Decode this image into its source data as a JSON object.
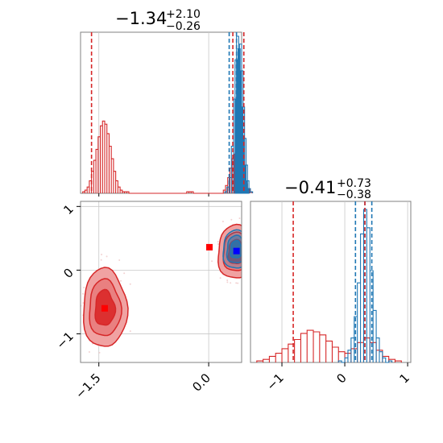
{
  "chart_data": {
    "type": "corner",
    "grid": true,
    "colors": {
      "red": "#d62728",
      "red_light": "#f0a2a2",
      "blue": "#1f77b4",
      "marker_red": "#ff0000",
      "marker_blue": "#0000ff"
    },
    "panels": [
      {
        "id": "hist-param-1",
        "type": "histogram",
        "xlim": [
          -1.75,
          0.45
        ],
        "title": {
          "value": "−1.34",
          "upper": "+2.10",
          "lower": "−0.26"
        },
        "quantiles_red": [
          -1.6,
          0.33,
          0.48
        ],
        "quantiles_blue": [
          0.28,
          0.38,
          0.48
        ],
        "series": [
          {
            "name": "",
            "color": "#d62728",
            "bins": [
              -1.72,
              -1.69,
              -1.66,
              -1.63,
              -1.6,
              -1.57,
              -1.54,
              -1.51,
              -1.48,
              -1.45,
              -1.42,
              -1.39,
              -1.36,
              -1.33,
              -1.3,
              -1.27,
              -1.24,
              -1.21,
              -1.18,
              -1.15,
              -1.12,
              -0.3,
              -0.27,
              -0.24,
              0.2,
              0.23,
              0.26,
              0.29,
              0.32,
              0.35,
              0.38,
              0.41,
              0.44,
              0.47,
              0.5,
              0.53,
              0.56
            ],
            "heights": [
              1,
              2,
              4,
              8,
              14,
              21,
              28,
              36,
              43,
              46,
              44,
              38,
              30,
              22,
              14,
              8,
              4,
              2,
              1,
              1,
              1,
              1,
              1,
              1,
              2,
              5,
              10,
              16,
              22,
              25,
              24,
              20,
              15,
              10,
              6,
              3,
              1
            ]
          },
          {
            "name": "",
            "color": "#1f77b4",
            "bins": [
              0.22,
              0.25,
              0.28,
              0.31,
              0.34,
              0.36,
              0.38,
              0.4,
              0.42,
              0.44,
              0.46,
              0.48,
              0.5,
              0.52,
              0.54,
              0.57
            ],
            "heights": [
              1,
              4,
              10,
              30,
              60,
              85,
              100,
              92,
              95,
              78,
              55,
              35,
              18,
              8,
              3,
              1
            ]
          }
        ],
        "ticks": []
      },
      {
        "id": "hist-param-2",
        "type": "histogram",
        "xlim": [
          -1.5,
          1.05
        ],
        "title": {
          "value": "−0.41",
          "upper": "+0.73",
          "lower": "−0.38"
        },
        "quantiles_red": [
          -0.82,
          0.32
        ],
        "quantiles_blue": [
          0.17,
          0.32,
          0.43
        ],
        "series": [
          {
            "name": "",
            "color": "#d62728",
            "bins": [
              -1.4,
              -1.3,
              -1.2,
              -1.1,
              -1.0,
              -0.9,
              -0.8,
              -0.7,
              -0.6,
              -0.5,
              -0.4,
              -0.3,
              -0.2,
              -0.1,
              0.0,
              0.1,
              0.2,
              0.3,
              0.4,
              0.5,
              0.6,
              0.7,
              0.8
            ],
            "heights": [
              1,
              2,
              4,
              6,
              9,
              12,
              15,
              19,
              21,
              20,
              18,
              14,
              10,
              7,
              6,
              9,
              13,
              16,
              13,
              8,
              4,
              2,
              1
            ]
          },
          {
            "name": "",
            "color": "#1f77b4",
            "bins": [
              -0.1,
              0.0,
              0.05,
              0.1,
              0.15,
              0.2,
              0.25,
              0.3,
              0.35,
              0.4,
              0.45,
              0.5,
              0.55,
              0.6,
              0.7
            ],
            "heights": [
              1,
              3,
              8,
              16,
              30,
              52,
              84,
              100,
              88,
              60,
              34,
              16,
              7,
              3,
              1
            ]
          }
        ],
        "ticks": [
          "−1",
          "0",
          "1"
        ],
        "tick_values": [
          -1,
          0,
          1
        ]
      },
      {
        "id": "scatter-2d",
        "type": "contour",
        "xlim": [
          -1.75,
          0.45
        ],
        "ylim": [
          -1.45,
          1.08
        ],
        "x_ticks": [
          "−1.5",
          "0.0"
        ],
        "x_tick_values": [
          -1.5,
          0.0
        ],
        "y_ticks": [
          "−1",
          "0",
          "1"
        ],
        "y_tick_values": [
          -1,
          0,
          1
        ],
        "markers": [
          {
            "name": "red-marker-1",
            "x": -1.42,
            "y": -0.6,
            "color": "#ff0000"
          },
          {
            "name": "red-marker-2",
            "x": 0.01,
            "y": 0.36,
            "color": "#ff0000"
          },
          {
            "name": "blue-marker",
            "x": 0.38,
            "y": 0.3,
            "color": "#0000ff"
          }
        ],
        "contour_red_1": {
          "cx": -1.42,
          "cy": -0.6,
          "rx": 0.3,
          "ry": 0.62
        },
        "contour_red_2": {
          "cx": 0.38,
          "cy": 0.28,
          "rx": 0.26,
          "ry": 0.42
        },
        "contour_blue": {
          "cx": 0.38,
          "cy": 0.32,
          "rx": 0.19,
          "ry": 0.3
        }
      }
    ]
  }
}
